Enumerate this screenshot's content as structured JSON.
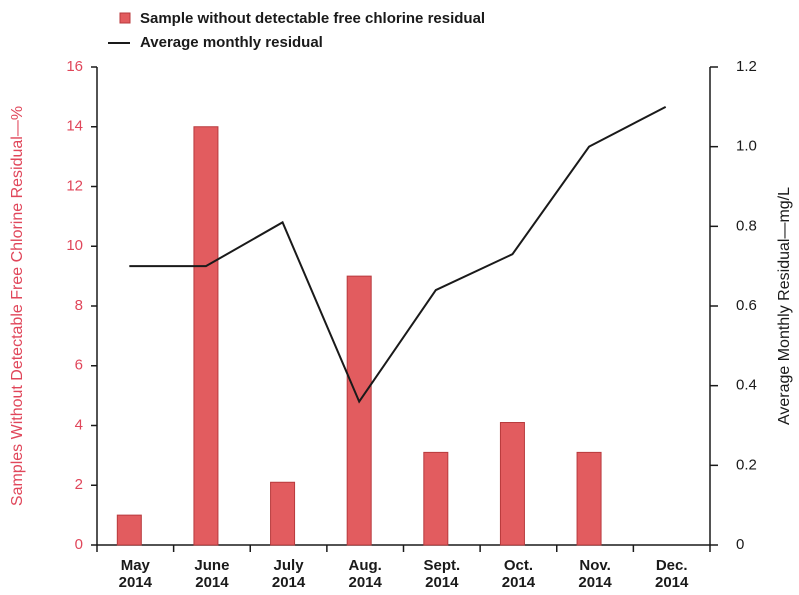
{
  "chart_data": {
    "type": "bar",
    "legend_title_bar": "Sample without detectable free chlorine residual",
    "categories": [
      "May 2014",
      "June 2014",
      "July 2014",
      "Aug. 2014",
      "Sept. 2014",
      "Oct. 2014",
      "Nov. 2014",
      "Dec. 2014"
    ],
    "series": [
      {
        "name": "Sample without detectable free chlorine residual",
        "type": "bar",
        "color": "#e25c5f",
        "values": [
          1.0,
          14,
          2.1,
          9,
          3.1,
          4.1,
          3.1,
          null
        ]
      },
      {
        "name": "Average monthly residual",
        "type": "line",
        "color": "#1a1a1a",
        "axis": "y2",
        "values": [
          0.7,
          0.7,
          0.81,
          0.36,
          0.64,
          0.73,
          1.0,
          1.1
        ]
      }
    ],
    "ylabel": "Samples Without Detectable Free Chlorine Residual—%",
    "y2label": "Average Monthly Residual—mg/L",
    "ylim": [
      0,
      16
    ],
    "yticks": [
      0,
      2,
      4,
      6,
      8,
      10,
      12,
      14,
      16
    ],
    "y2lim": [
      0,
      1.2
    ],
    "y2ticks": [
      0,
      {
        "value": 0.2,
        "label": "0.2"
      },
      {
        "value": 0.4,
        "label": "0.4"
      },
      {
        "value": 0.6,
        "label": "0.6"
      },
      {
        "value": 0.8,
        "label": "0.8"
      },
      {
        "value": 1.0,
        "label": "1.0"
      },
      1.2
    ],
    "ylabel_color": "#e0465a"
  }
}
